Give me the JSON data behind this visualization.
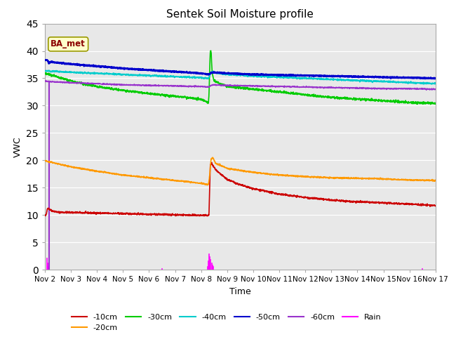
{
  "title": "Sentek Soil Moisture profile",
  "xlabel": "Time",
  "ylabel": "VWC",
  "ylim": [
    0,
    45
  ],
  "xlim": [
    0,
    15
  ],
  "xtick_labels": [
    "Nov 2",
    "Nov 3",
    "Nov 4",
    "Nov 5",
    "Nov 6",
    "Nov 7",
    "Nov 8",
    "Nov 9",
    "Nov 10",
    "Nov 11",
    "Nov 12",
    "Nov 13",
    "Nov 14",
    "Nov 15",
    "Nov 16",
    "Nov 17"
  ],
  "ytick_vals": [
    0,
    5,
    10,
    15,
    20,
    25,
    30,
    35,
    40,
    45
  ],
  "station_label": "BA_met",
  "bg_color": "#e8e8e8",
  "line_colors": {
    "d10": "#cc0000",
    "d20": "#ff9900",
    "d30": "#00cc00",
    "d40": "#00cccc",
    "d50": "#0000cc",
    "d60": "#9933cc",
    "rain": "#ff00ff"
  },
  "legend_labels": {
    "d10": "-10cm",
    "d20": "-20cm",
    "d30": "-30cm",
    "d40": "-40cm",
    "d50": "-50cm",
    "d60": "-60cm",
    "rain": "Rain"
  }
}
